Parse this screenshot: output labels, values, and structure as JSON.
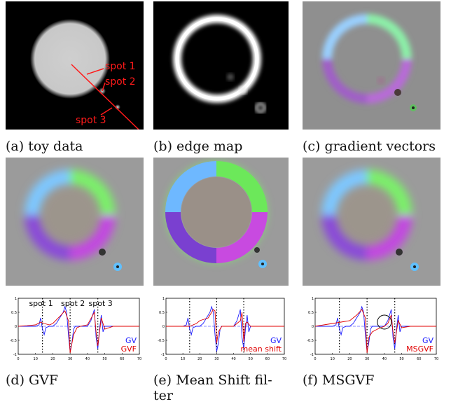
{
  "captions": {
    "a": "(a) toy data",
    "b": "(b) edge map",
    "c": "(c) gradient vectors",
    "d": "(d) GVF",
    "e_line1": "(e) Mean Shift fil-",
    "e_line2": "ter",
    "f": "(f) MSGVF"
  },
  "toy_labels": {
    "spot1": "spot 1",
    "spot2": "spot 2",
    "spot3": "spot 3"
  },
  "plot_labels": {
    "spot1": "spot 1",
    "spot2": "spot 2",
    "spot3": "spot 3"
  },
  "plots": [
    {
      "id": "d",
      "legend_blue": "GV",
      "legend_red": "GVF"
    },
    {
      "id": "e",
      "legend_blue": "GV",
      "legend_red": "mean shift"
    },
    {
      "id": "f",
      "legend_blue": "GV",
      "legend_red": "MSGVF"
    }
  ],
  "chart_data": [
    {
      "type": "line",
      "panel": "d",
      "xlim": [
        0,
        70
      ],
      "ylim": [
        -1,
        1
      ],
      "x_ticks": [
        0,
        10,
        20,
        30,
        40,
        50,
        60,
        70
      ],
      "y_ticks": [
        -1,
        -0.5,
        0,
        0.5,
        1
      ],
      "vlines": [
        14,
        30,
        46
      ],
      "series": [
        {
          "name": "GV",
          "color": "#1a1aff",
          "x": [
            0,
            10,
            12,
            13,
            14,
            15,
            16,
            18,
            20,
            22,
            24,
            26,
            27,
            28,
            29,
            30,
            31,
            32,
            33,
            34,
            36,
            40,
            42,
            44,
            45,
            46,
            47,
            48,
            49,
            50,
            52,
            55,
            60,
            70
          ],
          "y": [
            0,
            0,
            0.05,
            0.3,
            -0.1,
            -0.3,
            -0.05,
            0,
            0,
            0.1,
            0.3,
            0.5,
            0.7,
            0.5,
            -0.3,
            -0.9,
            -0.6,
            -0.1,
            0,
            0,
            0,
            0,
            0.2,
            0.6,
            -0.4,
            -0.8,
            -0.1,
            0.4,
            -0.2,
            0,
            0,
            0,
            0,
            0
          ]
        },
        {
          "name": "GVF",
          "color": "#e00000",
          "x": [
            0,
            5,
            10,
            13,
            15,
            18,
            20,
            24,
            27,
            29,
            30,
            32,
            34,
            36,
            40,
            44,
            45,
            46,
            48,
            50,
            55,
            60,
            70
          ],
          "y": [
            0,
            0.02,
            0.05,
            0.15,
            0.1,
            0.05,
            0.1,
            0.35,
            0.55,
            0.2,
            -0.95,
            -0.3,
            -0.05,
            0,
            0.05,
            0.5,
            -0.2,
            -0.7,
            0.3,
            -0.1,
            0,
            0,
            0
          ]
        }
      ]
    },
    {
      "type": "line",
      "panel": "e",
      "xlim": [
        0,
        70
      ],
      "ylim": [
        -1,
        1
      ],
      "x_ticks": [
        0,
        10,
        20,
        30,
        40,
        50,
        60,
        70
      ],
      "y_ticks": [
        -1,
        -0.5,
        0,
        0.5,
        1
      ],
      "vlines": [
        14,
        30,
        46
      ],
      "series": [
        {
          "name": "GV",
          "color": "#1a1aff",
          "x": [
            0,
            10,
            12,
            13,
            14,
            15,
            16,
            18,
            20,
            22,
            24,
            26,
            27,
            28,
            29,
            30,
            31,
            32,
            33,
            34,
            36,
            40,
            42,
            44,
            45,
            46,
            47,
            48,
            49,
            50,
            52,
            55,
            60,
            70
          ],
          "y": [
            0,
            0,
            0.05,
            0.3,
            -0.1,
            -0.3,
            -0.05,
            0,
            0,
            0.1,
            0.3,
            0.5,
            0.7,
            0.5,
            -0.3,
            -0.9,
            -0.6,
            -0.1,
            0,
            0,
            0,
            0,
            0.2,
            0.6,
            -0.4,
            -0.8,
            -0.1,
            0.4,
            -0.2,
            0,
            0,
            0,
            0,
            0
          ]
        },
        {
          "name": "mean shift",
          "color": "#e00000",
          "x": [
            0,
            10,
            14,
            18,
            20,
            25,
            28,
            29,
            30,
            31,
            33,
            40,
            44,
            45,
            46,
            47,
            48,
            50,
            55,
            70
          ],
          "y": [
            0,
            0,
            0,
            0.1,
            0.2,
            0.3,
            0.6,
            0.55,
            -0.6,
            -0.2,
            0,
            0,
            0.2,
            0.5,
            -0.55,
            0.1,
            0.15,
            0,
            0,
            0
          ]
        }
      ]
    },
    {
      "type": "line",
      "panel": "f",
      "xlim": [
        0,
        70
      ],
      "ylim": [
        -1,
        1
      ],
      "x_ticks": [
        0,
        10,
        20,
        30,
        40,
        50,
        60,
        70
      ],
      "y_ticks": [
        -1,
        -0.5,
        0,
        0.5,
        1
      ],
      "vlines": [
        14,
        30,
        46
      ],
      "series": [
        {
          "name": "GV",
          "color": "#1a1aff",
          "x": [
            0,
            10,
            12,
            13,
            14,
            15,
            16,
            18,
            20,
            22,
            24,
            26,
            27,
            28,
            29,
            30,
            31,
            32,
            33,
            34,
            36,
            40,
            42,
            44,
            45,
            46,
            47,
            48,
            49,
            50,
            52,
            55,
            60,
            70
          ],
          "y": [
            0,
            0,
            0.05,
            0.3,
            -0.1,
            -0.3,
            -0.05,
            0,
            0,
            0.1,
            0.3,
            0.5,
            0.7,
            0.5,
            -0.3,
            -0.9,
            -0.6,
            -0.1,
            0,
            0,
            0,
            0,
            0.2,
            0.6,
            -0.4,
            -0.8,
            -0.1,
            0.4,
            -0.2,
            0,
            0,
            0,
            0,
            0
          ]
        },
        {
          "name": "MSGVF",
          "color": "#e00000",
          "x": [
            0,
            5,
            10,
            15,
            20,
            24,
            27,
            29,
            30,
            31,
            33,
            36,
            38,
            40,
            42,
            44,
            45,
            46,
            48,
            50,
            55,
            60,
            70
          ],
          "y": [
            0,
            0.05,
            0.1,
            0.15,
            0.2,
            0.4,
            0.6,
            0.3,
            -0.95,
            -0.4,
            -0.2,
            -0.1,
            -0.05,
            0,
            0.1,
            0.4,
            -0.2,
            -0.6,
            0.2,
            -0.05,
            0,
            0,
            0
          ]
        }
      ]
    }
  ]
}
